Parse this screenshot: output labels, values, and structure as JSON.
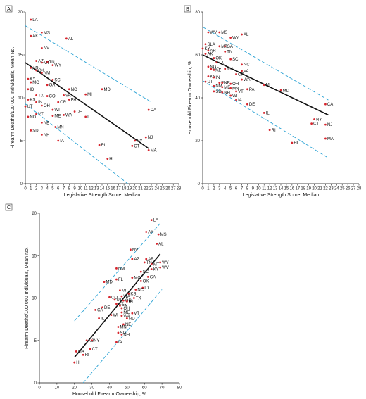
{
  "colors": {
    "point": "#d7262e",
    "fit": "#111111",
    "ci": "#2ba3d5",
    "axis": "#111111"
  },
  "chart_data": [
    {
      "panel": "A",
      "type": "scatter",
      "xlabel": "Legislative Strength Score, Median",
      "ylabel": "Firearm Deaths/100 000 Individuals, Mean No.",
      "xlim": [
        0,
        28
      ],
      "ylim": [
        0,
        20
      ],
      "xticks": [
        0,
        1,
        2,
        3,
        4,
        5,
        6,
        7,
        8,
        9,
        10,
        11,
        12,
        13,
        14,
        15,
        16,
        17,
        18,
        19,
        20,
        21,
        22,
        23,
        24,
        25,
        26,
        27,
        28
      ],
      "yticks": [
        0,
        5,
        10,
        15,
        20
      ],
      "fit": [
        [
          0,
          14.1
        ],
        [
          22.5,
          4.1
        ]
      ],
      "ci_upper": [
        [
          0,
          18.4
        ],
        [
          23,
          9.5
        ]
      ],
      "ci_lower": [
        [
          0,
          9.3
        ],
        [
          18.7,
          0
        ]
      ],
      "points": [
        {
          "label": "LA",
          "x": 1,
          "y": 19.1
        },
        {
          "label": "MS",
          "x": 3,
          "y": 17.6
        },
        {
          "label": "AK",
          "x": 1,
          "y": 17.2
        },
        {
          "label": "AL",
          "x": 7.5,
          "y": 16.9
        },
        {
          "label": "NV",
          "x": 3,
          "y": 15.8
        },
        {
          "label": "TN",
          "x": 4,
          "y": 14.2
        },
        {
          "label": "AZ",
          "x": 2,
          "y": 14.3
        },
        {
          "label": "MT",
          "x": 3,
          "y": 14.1
        },
        {
          "label": "WY",
          "x": 5,
          "y": 13.8
        },
        {
          "label": "AR",
          "x": 1,
          "y": 13.5
        },
        {
          "label": "NM",
          "x": 3,
          "y": 12.9
        },
        {
          "label": "OK",
          "x": 2,
          "y": 13.2
        },
        {
          "label": "KY",
          "x": 0.5,
          "y": 12.2
        },
        {
          "label": "SC",
          "x": 5,
          "y": 12.1
        },
        {
          "label": "GA",
          "x": 4,
          "y": 11.5
        },
        {
          "label": "MO",
          "x": 1,
          "y": 11.8
        },
        {
          "label": "ID",
          "x": 0.5,
          "y": 11
        },
        {
          "label": "NC",
          "x": 8,
          "y": 11
        },
        {
          "label": "MD",
          "x": 14,
          "y": 11
        },
        {
          "label": "TX",
          "x": 2,
          "y": 10.3
        },
        {
          "label": "KS",
          "x": 0.5,
          "y": 9.8
        },
        {
          "label": "CO",
          "x": 4,
          "y": 10.2
        },
        {
          "label": "VA",
          "x": 7,
          "y": 10.3
        },
        {
          "label": "MI",
          "x": 11,
          "y": 10.4
        },
        {
          "label": "IN",
          "x": 2,
          "y": 9.5
        },
        {
          "label": "OR",
          "x": 6,
          "y": 9.5
        },
        {
          "label": "PA",
          "x": 8,
          "y": 9.8
        },
        {
          "label": "UT",
          "x": 0,
          "y": 9
        },
        {
          "label": "OH",
          "x": 3,
          "y": 9.1
        },
        {
          "label": "WI",
          "x": 5,
          "y": 8.6
        },
        {
          "label": "DE",
          "x": 9,
          "y": 8.4
        },
        {
          "label": "CA",
          "x": 22.5,
          "y": 8.6
        },
        {
          "label": "ND",
          "x": 0.5,
          "y": 7.8
        },
        {
          "label": "VT",
          "x": 2,
          "y": 8.1
        },
        {
          "label": "ME",
          "x": 5,
          "y": 7.9
        },
        {
          "label": "WA",
          "x": 7,
          "y": 8
        },
        {
          "label": "IL",
          "x": 11,
          "y": 7.8
        },
        {
          "label": "NE",
          "x": 3,
          "y": 7.1
        },
        {
          "label": "MN",
          "x": 5.5,
          "y": 6.6
        },
        {
          "label": "SD",
          "x": 1,
          "y": 6.2
        },
        {
          "label": "NY",
          "x": 20,
          "y": 5
        },
        {
          "label": "NH",
          "x": 3,
          "y": 5.7
        },
        {
          "label": "NJ",
          "x": 22,
          "y": 5.4
        },
        {
          "label": "IA",
          "x": 6,
          "y": 5
        },
        {
          "label": "RI",
          "x": 13.5,
          "y": 4.5
        },
        {
          "label": "CT",
          "x": 19.5,
          "y": 4.4
        },
        {
          "label": "MA",
          "x": 22.5,
          "y": 3.9
        },
        {
          "label": "HI",
          "x": 15,
          "y": 2.9
        }
      ]
    },
    {
      "panel": "B",
      "type": "scatter",
      "xlabel": "Legislative Strength Score, Median",
      "ylabel": "Household Firearm Ownership, %",
      "xlim": [
        0,
        28
      ],
      "ylim": [
        0,
        80
      ],
      "xticks": [
        0,
        1,
        2,
        3,
        4,
        5,
        6,
        7,
        8,
        9,
        10,
        11,
        12,
        13,
        14,
        15,
        16,
        17,
        18,
        19,
        20,
        21,
        22,
        23,
        24,
        25,
        26,
        27,
        28
      ],
      "yticks": [
        0,
        20,
        40,
        60,
        80
      ],
      "fit": [
        [
          0,
          60
        ],
        [
          22.5,
          32
        ]
      ],
      "ci_upper": [
        [
          0,
          73
        ],
        [
          22.5,
          39
        ]
      ],
      "ci_lower": [
        [
          0,
          48
        ],
        [
          22.5,
          12
        ]
      ],
      "points": [
        {
          "label": "WV",
          "x": 1,
          "y": 70.5
        },
        {
          "label": "MS",
          "x": 3,
          "y": 70.5
        },
        {
          "label": "AL",
          "x": 7,
          "y": 69.5
        },
        {
          "label": "WY",
          "x": 5,
          "y": 68
        },
        {
          "label": "SLA",
          "x": 0.5,
          "y": 65
        },
        {
          "label": "KY",
          "x": 0,
          "y": 63
        },
        {
          "label": "MT",
          "x": 3,
          "y": 64
        },
        {
          "label": "GA",
          "x": 4,
          "y": 64
        },
        {
          "label": "AR",
          "x": 1,
          "y": 62
        },
        {
          "label": "TN",
          "x": 4,
          "y": 61.5
        },
        {
          "label": "AK",
          "x": 0.5,
          "y": 60.5
        },
        {
          "label": "OK",
          "x": 2,
          "y": 58.5
        },
        {
          "label": "SC",
          "x": 5,
          "y": 58
        },
        {
          "label": "TX",
          "x": 2.5,
          "y": 56.5
        },
        {
          "label": "NC",
          "x": 7,
          "y": 55.5
        },
        {
          "label": "ND",
          "x": 1,
          "y": 54.5
        },
        {
          "label": "MO",
          "x": 1.5,
          "y": 53.5
        },
        {
          "label": "AZ",
          "x": 2,
          "y": 53
        },
        {
          "label": "NV",
          "x": 4,
          "y": 53.5
        },
        {
          "label": "VA",
          "x": 7,
          "y": 52.5
        },
        {
          "label": "OR",
          "x": 6,
          "y": 51
        },
        {
          "label": "KS",
          "x": 1,
          "y": 50
        },
        {
          "label": "IN",
          "x": 2,
          "y": 49.5
        },
        {
          "label": "WA",
          "x": 7,
          "y": 48.5
        },
        {
          "label": "UT",
          "x": 0.5,
          "y": 47.5
        },
        {
          "label": "FL",
          "x": 3,
          "y": 47
        },
        {
          "label": "NE",
          "x": 3.5,
          "y": 47
        },
        {
          "label": "OH",
          "x": 5,
          "y": 46.5
        },
        {
          "label": "MI",
          "x": 11,
          "y": 46
        },
        {
          "label": "NM",
          "x": 2,
          "y": 45.5
        },
        {
          "label": "ME",
          "x": 3.5,
          "y": 45
        },
        {
          "label": "MN",
          "x": 5,
          "y": 44.5
        },
        {
          "label": "PA",
          "x": 8,
          "y": 44
        },
        {
          "label": "MD",
          "x": 14,
          "y": 43.5
        },
        {
          "label": "SD",
          "x": 2,
          "y": 43
        },
        {
          "label": "NH",
          "x": 3.5,
          "y": 42.5
        },
        {
          "label": "VT",
          "x": 6,
          "y": 43
        },
        {
          "label": "WI",
          "x": 5,
          "y": 41
        },
        {
          "label": "IA",
          "x": 6,
          "y": 39
        },
        {
          "label": "DE",
          "x": 8,
          "y": 37
        },
        {
          "label": "IL",
          "x": 11,
          "y": 33
        },
        {
          "label": "CA",
          "x": 22,
          "y": 37
        },
        {
          "label": "NY",
          "x": 20,
          "y": 30
        },
        {
          "label": "CT",
          "x": 19.5,
          "y": 28
        },
        {
          "label": "NJ",
          "x": 22,
          "y": 27.5
        },
        {
          "label": "RI",
          "x": 12,
          "y": 25
        },
        {
          "label": "MA",
          "x": 22,
          "y": 21
        },
        {
          "label": "HI",
          "x": 16,
          "y": 19
        }
      ]
    },
    {
      "panel": "C",
      "type": "scatter",
      "xlabel": "Household Firearm Ownership, %",
      "ylabel": "Firearm Deaths/100 000 Individuals, Mean No.",
      "xlim": [
        0,
        80
      ],
      "ylim": [
        0,
        20
      ],
      "xticks": [
        0,
        10,
        20,
        30,
        40,
        50,
        60,
        70,
        80
      ],
      "yticks": [
        0,
        5,
        10,
        15,
        20
      ],
      "fit": [
        [
          20,
          3
        ],
        [
          69,
          15.2
        ]
      ],
      "ci_upper": [
        [
          20,
          7.3
        ],
        [
          69,
          18.8
        ]
      ],
      "ci_lower": [
        [
          25,
          0
        ],
        [
          70,
          11
        ]
      ],
      "points": [
        {
          "label": "LA",
          "x": 64,
          "y": 19.2
        },
        {
          "label": "AK",
          "x": 61,
          "y": 17.8
        },
        {
          "label": "MS",
          "x": 68,
          "y": 17.5
        },
        {
          "label": "AL",
          "x": 67,
          "y": 16.4
        },
        {
          "label": "NV",
          "x": 52,
          "y": 15.7
        },
        {
          "label": "AZ",
          "x": 53,
          "y": 14.6
        },
        {
          "label": "AR",
          "x": 61,
          "y": 14.6
        },
        {
          "label": "TN",
          "x": 60,
          "y": 14.2
        },
        {
          "label": "NM",
          "x": 44,
          "y": 13.5
        },
        {
          "label": "MT",
          "x": 64,
          "y": 14
        },
        {
          "label": "WY",
          "x": 69,
          "y": 14.2
        },
        {
          "label": "KY",
          "x": 64,
          "y": 13.4
        },
        {
          "label": "WV",
          "x": 69,
          "y": 13.6
        },
        {
          "label": "SC",
          "x": 58,
          "y": 13.1
        },
        {
          "label": "MO",
          "x": 53,
          "y": 12.4
        },
        {
          "label": "FL",
          "x": 44,
          "y": 12.2
        },
        {
          "label": "GA",
          "x": 62,
          "y": 12.5
        },
        {
          "label": "OK",
          "x": 58,
          "y": 12
        },
        {
          "label": "MD",
          "x": 37,
          "y": 11.9
        },
        {
          "label": "ID",
          "x": 59,
          "y": 11.2
        },
        {
          "label": "MI",
          "x": 46,
          "y": 10.9
        },
        {
          "label": "NC",
          "x": 55,
          "y": 11
        },
        {
          "label": "KS",
          "x": 51,
          "y": 10.5
        },
        {
          "label": "CO",
          "x": 40,
          "y": 10.1
        },
        {
          "label": "WA",
          "x": 47,
          "y": 10.2
        },
        {
          "label": "TX",
          "x": 54,
          "y": 10
        },
        {
          "label": "UT",
          "x": 43,
          "y": 9.8
        },
        {
          "label": "OR",
          "x": 48,
          "y": 9.7
        },
        {
          "label": "IN",
          "x": 50,
          "y": 9.6
        },
        {
          "label": "AZ",
          "x": 44,
          "y": 9.3
        },
        {
          "label": "PA",
          "x": 46,
          "y": 9.1
        },
        {
          "label": "OH",
          "x": 47,
          "y": 8.8
        },
        {
          "label": "DE",
          "x": 36,
          "y": 8.9
        },
        {
          "label": "CA",
          "x": 32,
          "y": 8.6
        },
        {
          "label": "ME",
          "x": 47,
          "y": 8.3
        },
        {
          "label": "VT",
          "x": 53,
          "y": 8.2
        },
        {
          "label": "WI",
          "x": 41,
          "y": 8
        },
        {
          "label": "WA",
          "x": 47,
          "y": 7.9
        },
        {
          "label": "ND",
          "x": 50,
          "y": 7.6
        },
        {
          "label": "IL",
          "x": 34,
          "y": 7.6
        },
        {
          "label": "NE",
          "x": 48,
          "y": 6.9
        },
        {
          "label": "MN",
          "x": 45,
          "y": 6.6
        },
        {
          "label": "SD",
          "x": 45,
          "y": 5.9
        },
        {
          "label": "NH",
          "x": 47,
          "y": 5.7
        },
        {
          "label": "NY",
          "x": 30,
          "y": 5
        },
        {
          "label": "NJ",
          "x": 27,
          "y": 5
        },
        {
          "label": "IA",
          "x": 44,
          "y": 4.8
        },
        {
          "label": "CT",
          "x": 29,
          "y": 4
        },
        {
          "label": "MA",
          "x": 21,
          "y": 3.7
        },
        {
          "label": "RI",
          "x": 25,
          "y": 3.3
        },
        {
          "label": "HI",
          "x": 20,
          "y": 2.4
        }
      ]
    }
  ]
}
